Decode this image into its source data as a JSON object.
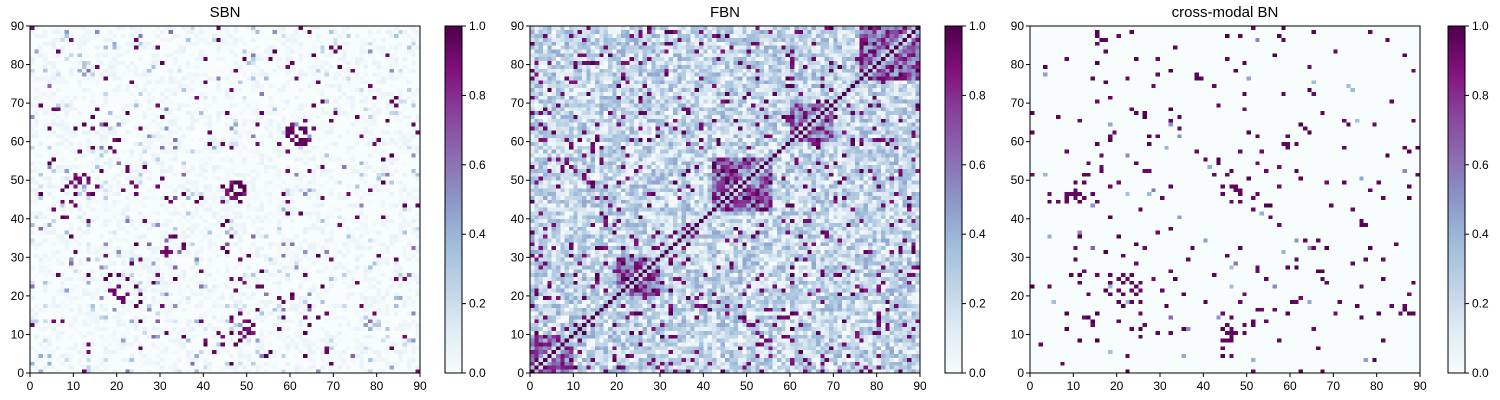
{
  "chart_data": [
    {
      "type": "heatmap",
      "title": "SBN",
      "x_range": [
        0,
        90
      ],
      "y_range": [
        0,
        90
      ],
      "x_ticks": [
        "0",
        "10",
        "20",
        "30",
        "40",
        "50",
        "60",
        "70",
        "80",
        "90"
      ],
      "y_ticks": [
        "0",
        "10",
        "20",
        "30",
        "40",
        "50",
        "60",
        "70",
        "80",
        "90"
      ],
      "matrix_size": 90,
      "value_range": [
        0.0,
        1.0
      ],
      "colorbar_ticks": [
        "0.0",
        "0.2",
        "0.4",
        "0.6",
        "0.8",
        "1.0"
      ],
      "colormap": [
        "#f7fcfd",
        "#e0ecf4",
        "#bfd3e6",
        "#9ebcda",
        "#8c96c6",
        "#8c6bb1",
        "#88419d",
        "#810f7c",
        "#4d004b"
      ],
      "density": "sparse",
      "blocks": [
        [
          20,
          26,
          18,
          24
        ],
        [
          44,
          50,
          44,
          50
        ],
        [
          10,
          14,
          46,
          52
        ],
        [
          60,
          66,
          58,
          64
        ],
        [
          30,
          34,
          30,
          34
        ],
        [
          44,
          50,
          8,
          14
        ]
      ]
    },
    {
      "type": "heatmap",
      "title": "FBN",
      "x_range": [
        0,
        90
      ],
      "y_range": [
        0,
        90
      ],
      "x_ticks": [
        "0",
        "10",
        "20",
        "30",
        "40",
        "50",
        "60",
        "70",
        "80",
        "90"
      ],
      "y_ticks": [
        "0",
        "10",
        "20",
        "30",
        "40",
        "50",
        "60",
        "70",
        "80",
        "90"
      ],
      "matrix_size": 90,
      "value_range": [
        0.0,
        1.0
      ],
      "colorbar_ticks": [
        "0.0",
        "0.2",
        "0.4",
        "0.6",
        "0.8",
        "1.0"
      ],
      "colormap": [
        "#f7fcfd",
        "#e0ecf4",
        "#bfd3e6",
        "#9ebcda",
        "#8c96c6",
        "#8c6bb1",
        "#88419d",
        "#810f7c",
        "#4d004b"
      ],
      "density": "dense",
      "blocks": [
        [
          42,
          56,
          42,
          56
        ],
        [
          0,
          10,
          0,
          10
        ],
        [
          76,
          90,
          76,
          90
        ],
        [
          20,
          30,
          20,
          30
        ],
        [
          60,
          70,
          60,
          70
        ]
      ]
    },
    {
      "type": "heatmap",
      "title": "cross-modal BN",
      "x_range": [
        0,
        90
      ],
      "y_range": [
        0,
        90
      ],
      "x_ticks": [
        "0",
        "10",
        "20",
        "30",
        "40",
        "50",
        "60",
        "70",
        "80",
        "90"
      ],
      "y_ticks": [
        "0",
        "10",
        "20",
        "30",
        "40",
        "50",
        "60",
        "70",
        "80",
        "90"
      ],
      "matrix_size": 90,
      "value_range": [
        0.0,
        1.0
      ],
      "colorbar_ticks": [
        "0.0",
        "0.2",
        "0.4",
        "0.6",
        "0.8",
        "1.0"
      ],
      "colormap": [
        "#f7fcfd",
        "#e0ecf4",
        "#bfd3e6",
        "#9ebcda",
        "#8c96c6",
        "#8c6bb1",
        "#88419d",
        "#810f7c",
        "#4d004b"
      ],
      "density": "sparse-binary",
      "blocks": [
        [
          20,
          26,
          18,
          24
        ],
        [
          44,
          50,
          44,
          50
        ],
        [
          10,
          14,
          46,
          52
        ],
        [
          58,
          64,
          58,
          64
        ],
        [
          44,
          50,
          8,
          14
        ]
      ]
    }
  ]
}
